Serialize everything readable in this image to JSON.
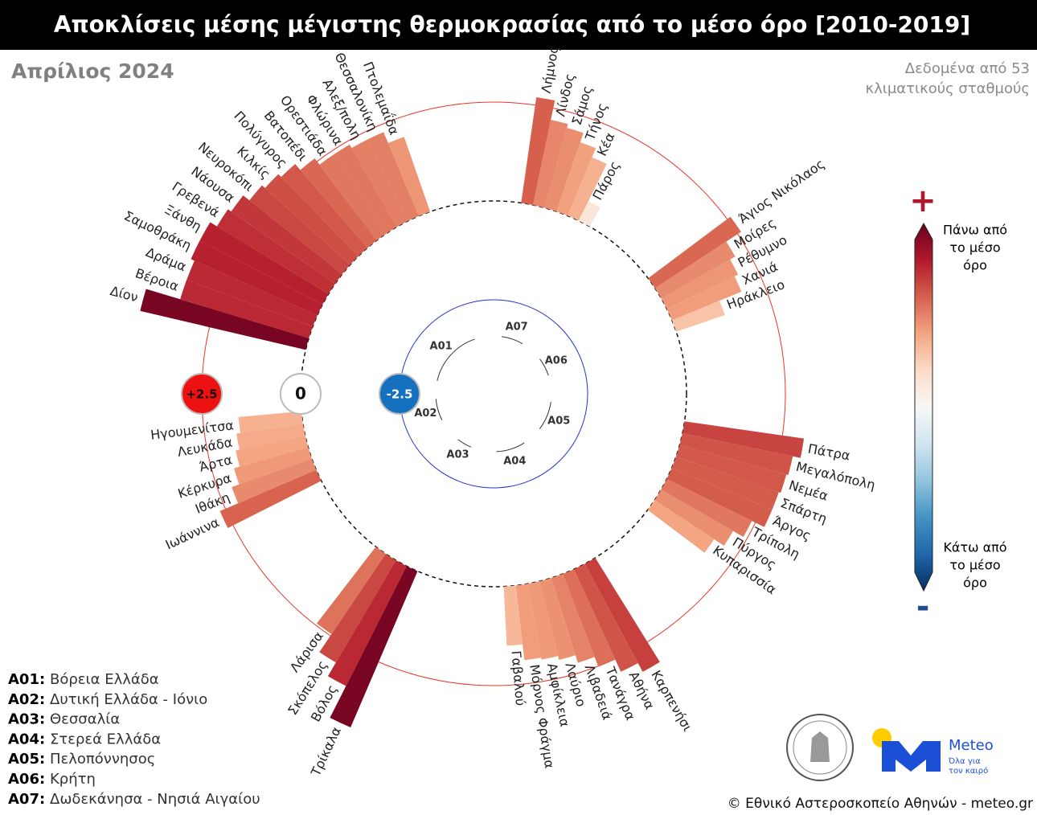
{
  "chart_data": {
    "type": "radial_bar",
    "title": "Αποκλίσεις μέσης μέγιστης θερμοκρασίας από το μέσο όρο [2010-2019]",
    "subtitle": "Απρίλιος 2024",
    "note": [
      "Δεδομένα από 53",
      "κλιματικούς σταθμούς"
    ],
    "rlim": [
      -2.5,
      2.5
    ],
    "rticks": [
      {
        "value": 2.5,
        "label": "+2.5"
      },
      0,
      -2.5
    ],
    "clim": [
      -4.5,
      4.5
    ],
    "colormap": [
      "#053061",
      "#2166ac",
      "#4393c3",
      "#92c5de",
      "#d1e5f0",
      "#f7f7f7",
      "#fddbc7",
      "#f4a582",
      "#d6604d",
      "#b2182b",
      "#67001f"
    ],
    "colorbar": {
      "high_sign": "+",
      "high_label": [
        "Πάνω από",
        "το μέσο",
        "όρο"
      ],
      "low_sign": "-",
      "low_label": [
        "Κάτω από",
        "το μέσο",
        "όρο"
      ]
    },
    "groups": [
      {
        "code": "A01",
        "label": "A01:",
        "name": "Βόρεια Ελλάδα",
        "stations": [
          "Δίον",
          "Βέροια",
          "Δράμα",
          "Σαμοθράκη",
          "Ξάνθη",
          "Γρεβενά",
          "Νάουσα",
          "Νευροκόπι",
          "Κιλκίς",
          "Πολύγυρος",
          "Βατοπέδι",
          "Ορεστιάδα",
          "Φλώρινα",
          "Αλεξ/πολη",
          "Θεσσαλονίκη",
          "Πτολεμαΐδα"
        ],
        "values": [
          4.3,
          3.4,
          3.4,
          3.5,
          3.5,
          3.3,
          3.2,
          3.0,
          2.9,
          2.8,
          2.6,
          2.4,
          2.4,
          2.3,
          2.3,
          2.0
        ]
      },
      {
        "code": "A02",
        "label": "A02:",
        "name": "Δυτική Ελλάδα - Ιόνιο",
        "stations": [
          "Ιωάννινα",
          "Ιθάκη",
          "Κέρκυρα",
          "Άρτα",
          "Λευκάδα",
          "Ηγουμενίτσα"
        ],
        "values": [
          2.65,
          2.15,
          1.95,
          1.8,
          1.7,
          1.6
        ]
      },
      {
        "code": "A03",
        "label": "A03:",
        "name": "Θεσσαλία",
        "stations": [
          "Τρίκαλα",
          "Βόλος",
          "Σκόπελος",
          "Λάρισα"
        ],
        "values": [
          4.3,
          3.4,
          3.0,
          2.45
        ]
      },
      {
        "code": "A04",
        "label": "A04:",
        "name": "Στερεά Ελλάδα",
        "stations": [
          "Καρπενήσι",
          "Αθήνα",
          "Τανάγρα",
          "Λιβαδειά",
          "Λαύριο",
          "Αμφίκλεια",
          "Μόρνος Φράγμα",
          "Γαβαλού"
        ],
        "values": [
          3.1,
          2.85,
          2.5,
          2.25,
          2.05,
          1.95,
          1.9,
          1.5
        ]
      },
      {
        "code": "A05",
        "label": "A05:",
        "name": "Πελοπόννησος",
        "stations": [
          "Πάτρα",
          "Μεγαλόπολη",
          "Νεμέα",
          "Σπάρτη",
          "Άργος",
          "Τρίπολη",
          "Πύργος",
          "Κυπαρισσία"
        ],
        "values": [
          3.05,
          2.85,
          2.8,
          2.75,
          2.75,
          2.4,
          2.1,
          1.8
        ]
      },
      {
        "code": "A06",
        "label": "A06:",
        "name": "Κρήτη",
        "stations": [
          "Άγιος Νικόλαος",
          "Μοίρες",
          "Ρέθυμνο",
          "Χανιά",
          "Ηράκλειο"
        ],
        "values": [
          2.6,
          2.15,
          2.0,
          1.9,
          1.3
        ]
      },
      {
        "code": "A07",
        "label": "A07:",
        "name": "Δωδεκάνησα - Νησιά Αιγαίου",
        "stations": [
          "Λήμνος",
          "Λίνδος",
          "Σάμος",
          "Τήνος",
          "Κέα",
          "Πάρος"
        ],
        "values": [
          2.7,
          2.2,
          2.1,
          1.85,
          1.6,
          0.55
        ]
      }
    ],
    "logo": {
      "name": "Meteo",
      "tagline": [
        "Όλα για",
        "τον καιρό"
      ]
    },
    "footer": "© Εθνικό Αστεροσκοπείο Αθηνών - meteo.gr"
  }
}
